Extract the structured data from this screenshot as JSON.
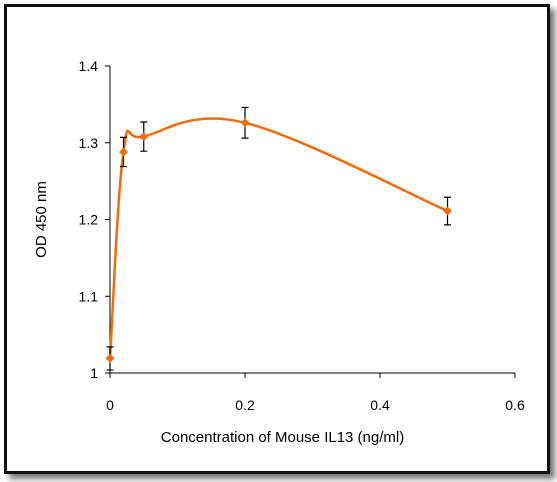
{
  "chart_data": {
    "type": "line",
    "title": "",
    "xlabel": "Concentration of Mouse IL13 (ng/ml)",
    "ylabel": "OD 450 nm",
    "xlim": [
      0,
      0.6
    ],
    "ylim": [
      1,
      1.4
    ],
    "x_ticks": [
      "0",
      "0.2",
      "0.4",
      "0.6"
    ],
    "y_ticks": [
      "1",
      "1.1",
      "1.2",
      "1.3",
      "1.4"
    ],
    "grid": false,
    "legend": "none",
    "series": [
      {
        "color": "#f26c0d",
        "marker": "diamond",
        "smooth": true,
        "points": [
          {
            "x": 0,
            "y": 1.019,
            "err": 0.015
          },
          {
            "x": 0.02,
            "y": 1.288,
            "err": 0.019
          },
          {
            "x": 0.05,
            "y": 1.308,
            "err": 0.019
          },
          {
            "x": 0.2,
            "y": 1.326,
            "err": 0.02
          },
          {
            "x": 0.5,
            "y": 1.211,
            "err": 0.018
          }
        ]
      }
    ]
  }
}
